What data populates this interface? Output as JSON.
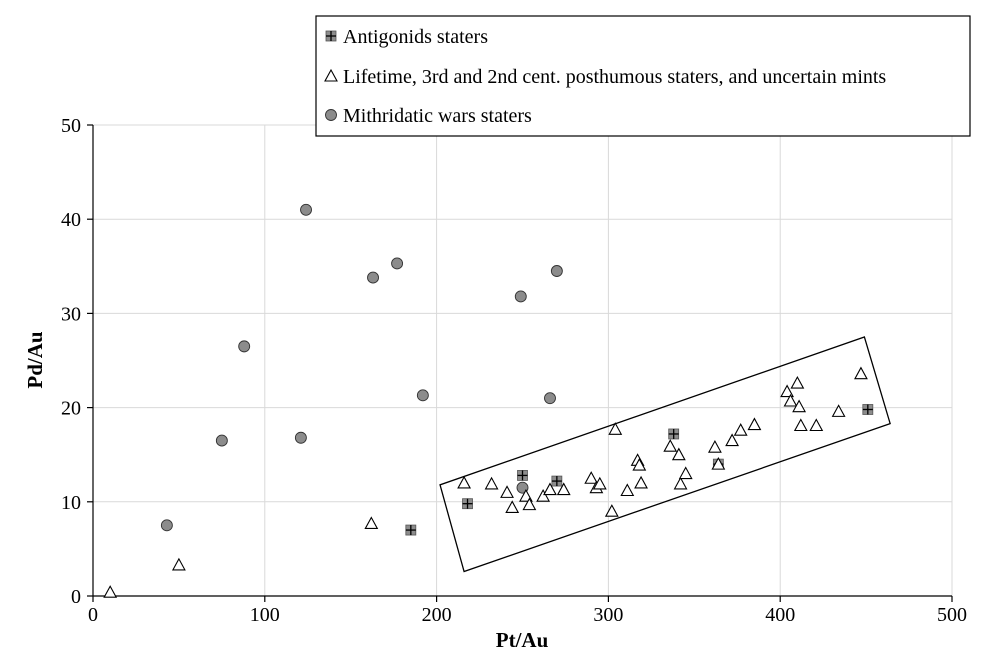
{
  "chart_data": {
    "type": "scatter",
    "xlabel": "Pt/Au",
    "ylabel": "Pd/Au",
    "xlim": [
      0,
      500
    ],
    "ylim": [
      0,
      50
    ],
    "xticks": [
      "0",
      "100",
      "200",
      "300",
      "400",
      "500"
    ],
    "yticks": [
      "0",
      "10",
      "20",
      "30",
      "40",
      "50"
    ],
    "grid": true,
    "legend_position": "top-right",
    "series": [
      {
        "name": "Antigonids staters",
        "marker": "square-plus",
        "color": "#8c8c8c",
        "points": [
          [
            185,
            7.0
          ],
          [
            218,
            9.8
          ],
          [
            250,
            12.8
          ],
          [
            270,
            12.2
          ],
          [
            338,
            17.2
          ],
          [
            364,
            14.0
          ],
          [
            451,
            19.8
          ]
        ]
      },
      {
        "name": "Lifetime, 3rd and 2nd cent. posthumous staters, and uncertain mints",
        "marker": "triangle-open",
        "color": "#000000",
        "points": [
          [
            10,
            0.4
          ],
          [
            50,
            3.3
          ],
          [
            162,
            7.7
          ],
          [
            216,
            12.0
          ],
          [
            232,
            11.9
          ],
          [
            241,
            11.0
          ],
          [
            244,
            9.4
          ],
          [
            252,
            10.6
          ],
          [
            254,
            9.7
          ],
          [
            262,
            10.6
          ],
          [
            266,
            11.3
          ],
          [
            274,
            11.3
          ],
          [
            290,
            12.5
          ],
          [
            293,
            11.5
          ],
          [
            295,
            11.9
          ],
          [
            302,
            9.0
          ],
          [
            304,
            17.7
          ],
          [
            311,
            11.2
          ],
          [
            317,
            14.4
          ],
          [
            318,
            13.9
          ],
          [
            319,
            12.0
          ],
          [
            336,
            15.9
          ],
          [
            341,
            15.0
          ],
          [
            342,
            11.9
          ],
          [
            345,
            13.0
          ],
          [
            362,
            15.8
          ],
          [
            364,
            14.0
          ],
          [
            372,
            16.5
          ],
          [
            377,
            17.6
          ],
          [
            385,
            18.2
          ],
          [
            404,
            21.7
          ],
          [
            406,
            20.7
          ],
          [
            410,
            22.6
          ],
          [
            411,
            20.1
          ],
          [
            412,
            18.1
          ],
          [
            421,
            18.1
          ],
          [
            434,
            19.6
          ],
          [
            447,
            23.6
          ]
        ]
      },
      {
        "name": "Mithridatic wars staters",
        "marker": "circle-filled",
        "color": "#8c8c8c",
        "points": [
          [
            43,
            7.5
          ],
          [
            75,
            16.5
          ],
          [
            88,
            26.5
          ],
          [
            121,
            16.8
          ],
          [
            124,
            41.0
          ],
          [
            163,
            33.8
          ],
          [
            177,
            35.3
          ],
          [
            192,
            21.3
          ],
          [
            249,
            31.8
          ],
          [
            250,
            11.5
          ],
          [
            266,
            21.0
          ],
          [
            270,
            34.5
          ]
        ]
      }
    ],
    "annotation": {
      "type": "rectangle",
      "corners": [
        [
          202,
          11.8
        ],
        [
          216,
          2.6
        ],
        [
          464,
          18.3
        ],
        [
          449,
          27.5
        ]
      ]
    }
  }
}
